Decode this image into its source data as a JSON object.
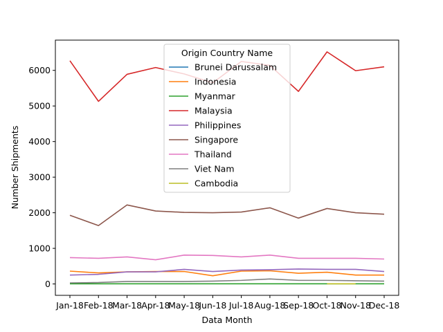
{
  "chart_data": {
    "type": "line",
    "title": "",
    "xlabel": "Data Month",
    "ylabel": "Number Shipments",
    "categories": [
      "Jan-18",
      "Feb-18",
      "Mar-18",
      "Apr-18",
      "May-18",
      "Jun-18",
      "Jul-18",
      "Aug-18",
      "Sep-18",
      "Oct-18",
      "Nov-18",
      "Dec-18"
    ],
    "ylim": [
      -320,
      6850
    ],
    "yticks": [
      0,
      1000,
      2000,
      3000,
      4000,
      5000,
      6000
    ],
    "grid": false,
    "legend": {
      "title": "Origin Country Name",
      "placement": "upper-center"
    },
    "series": [
      {
        "name": "Brunei Darussalam",
        "color": "#1f77b4",
        "values": [
          null,
          null,
          null,
          null,
          null,
          null,
          null,
          null,
          null,
          null,
          null,
          null
        ]
      },
      {
        "name": "Indonesia",
        "color": "#ff7f0e",
        "values": [
          360,
          310,
          340,
          350,
          350,
          230,
          360,
          370,
          300,
          330,
          250,
          250
        ]
      },
      {
        "name": "Myanmar",
        "color": "#2ca02c",
        "values": [
          5,
          5,
          5,
          5,
          5,
          5,
          5,
          5,
          5,
          5,
          5,
          5
        ]
      },
      {
        "name": "Malaysia",
        "color": "#d62728",
        "values": [
          6270,
          5130,
          5890,
          6080,
          5900,
          5650,
          6250,
          6140,
          5410,
          6520,
          5990,
          6100
        ]
      },
      {
        "name": "Philippines",
        "color": "#9467bd",
        "values": [
          250,
          270,
          340,
          340,
          410,
          350,
          390,
          400,
          420,
          410,
          410,
          350
        ]
      },
      {
        "name": "Singapore",
        "color": "#8c564b",
        "values": [
          1930,
          1640,
          2220,
          2050,
          2010,
          2000,
          2020,
          2140,
          1850,
          2120,
          2000,
          1960
        ]
      },
      {
        "name": "Thailand",
        "color": "#e377c2",
        "values": [
          740,
          720,
          760,
          680,
          810,
          800,
          760,
          810,
          720,
          720,
          720,
          700
        ]
      },
      {
        "name": "Viet Nam",
        "color": "#7f7f7f",
        "values": [
          30,
          40,
          70,
          70,
          70,
          80,
          100,
          140,
          100,
          100,
          90,
          80
        ]
      },
      {
        "name": "Cambodia",
        "color": "#bcbd22",
        "values": [
          null,
          null,
          null,
          null,
          null,
          null,
          null,
          null,
          null,
          5,
          5,
          null
        ]
      }
    ]
  }
}
